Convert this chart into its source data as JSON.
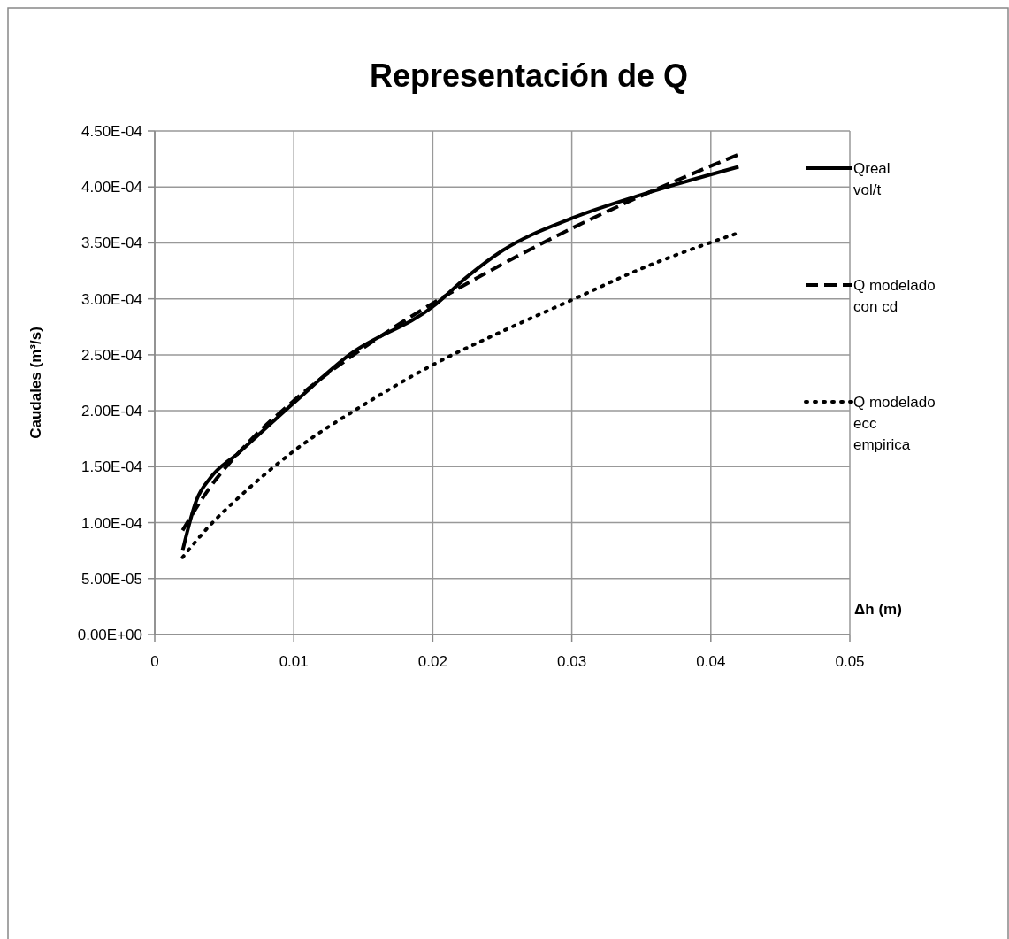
{
  "chart_data": {
    "type": "line",
    "title": "Representación de Q",
    "xlabel": "Δh (m)",
    "ylabel": "Caudales (m³/s)",
    "xlim": [
      0,
      0.05
    ],
    "xticks": [
      0,
      0.01,
      0.02,
      0.03,
      0.04,
      0.05
    ],
    "ylim": [
      0,
      0.00045
    ],
    "yticks": [
      {
        "value": 0,
        "label": "0.00E+00"
      },
      {
        "value": 5e-05,
        "label": "5.00E-05"
      },
      {
        "value": 0.0001,
        "label": "1.00E-04"
      },
      {
        "value": 0.00015,
        "label": "1.50E-04"
      },
      {
        "value": 0.0002,
        "label": "2.00E-04"
      },
      {
        "value": 0.00025,
        "label": "2.50E-04"
      },
      {
        "value": 0.0003,
        "label": "3.00E-04"
      },
      {
        "value": 0.00035,
        "label": "3.50E-04"
      },
      {
        "value": 0.0004,
        "label": "4.00E-04"
      },
      {
        "value": 0.00045,
        "label": "4.50E-04"
      }
    ],
    "grid": true,
    "legend": "right",
    "marker": "none",
    "series": [
      {
        "name": "Qreal vol/t",
        "color": "#000000",
        "line_style": "solid",
        "x": [
          0.002,
          0.003,
          0.004,
          0.006,
          0.01,
          0.014,
          0.02,
          0.0225,
          0.025,
          0.03,
          0.035,
          0.042
        ],
        "values": [
          7.5e-05,
          0.00012,
          0.00014,
          0.000162,
          0.000207,
          0.00025,
          0.000293,
          0.00032,
          0.000343,
          0.000372,
          0.000393,
          0.000418
        ]
      },
      {
        "name": "Q modelado con cd",
        "color": "#000000",
        "line_style": "dashed",
        "x": [
          0.002,
          0.004,
          0.006,
          0.01,
          0.015,
          0.02,
          0.025,
          0.03,
          0.035,
          0.042
        ],
        "values": [
          9.3e-05,
          0.000132,
          0.000162,
          0.000209,
          0.000256,
          0.000296,
          0.000331,
          0.000363,
          0.000392,
          0.000429
        ]
      },
      {
        "name": "Q modelado ecc empirica",
        "color": "#000000",
        "line_style": "dotted",
        "x": [
          0.002,
          0.004,
          0.006,
          0.01,
          0.015,
          0.02,
          0.025,
          0.03,
          0.035,
          0.042
        ],
        "values": [
          6.9e-05,
          9.8e-05,
          0.000122,
          0.000164,
          0.000205,
          0.000241,
          0.000271,
          0.000299,
          0.000327,
          0.000359
        ]
      }
    ]
  }
}
